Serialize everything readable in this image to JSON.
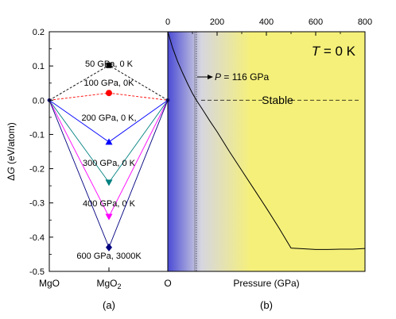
{
  "chart_data": [
    {
      "panel_label": "(a)",
      "type": "line",
      "ylabel_prefix": "Δ",
      "ylabel_var": "G",
      "ylabel_suffix": " (eV/atom)",
      "ylim": [
        -0.5,
        0.2
      ],
      "yticks": [
        0.2,
        0.1,
        0.0,
        -0.1,
        -0.2,
        -0.3,
        -0.4,
        -0.5
      ],
      "x_categories": [
        "MgO",
        "MgO2",
        "O"
      ],
      "x_labels": {
        "mgo": "MgO",
        "mgo2_base": "MgO",
        "mgo2_sub": "2",
        "o": "O"
      },
      "grid": false,
      "series": [
        {
          "name": "50 GPa, 0 K",
          "label": "50 GPa, 0 K",
          "color": "#000000",
          "marker": "square",
          "dash": true,
          "values": [
            0.0,
            0.102,
            0.0
          ]
        },
        {
          "name": "100 GPa, 0K",
          "label": "100 GPa, 0K",
          "color": "#ff0000",
          "marker": "circle",
          "dash": true,
          "values": [
            0.0,
            0.021,
            0.0
          ]
        },
        {
          "name": "200 GPa, 0 K,",
          "label": "200 GPa, 0 K,",
          "color": "#0000ff",
          "marker": "triangle-up",
          "dash": false,
          "values": [
            0.0,
            -0.122,
            0.0
          ]
        },
        {
          "name": "300 GPa, 0 K",
          "label": "300 GPa, 0 K",
          "color": "#008080",
          "marker": "triangle-down",
          "dash": false,
          "values": [
            0.0,
            -0.24,
            0.0
          ]
        },
        {
          "name": "400 GPa, 0 K",
          "label": "400 GPa, 0 K",
          "color": "#ff00ff",
          "marker": "triangle-down",
          "dash": false,
          "values": [
            0.0,
            -0.34,
            0.0
          ]
        },
        {
          "name": "600 GPa, 3000K",
          "label": "600 GPa, 3000K",
          "color": "#000080",
          "marker": "diamond",
          "dash": false,
          "values": [
            0.0,
            -0.43,
            0.0
          ]
        }
      ]
    },
    {
      "panel_label": "(b)",
      "type": "line",
      "xlabel": "Pressure (GPa)",
      "xlim": [
        0,
        800
      ],
      "xticks": [
        0,
        200,
        400,
        600,
        800
      ],
      "ylim": [
        -0.5,
        0.2
      ],
      "grid": false,
      "title_var": "T",
      "title_rest": " = 0 K",
      "annotation_var": "P",
      "annotation_rest": " = 116 GPa",
      "transition_pressure": 116,
      "stable_label": "Stable",
      "background_colors": {
        "left": "#4b4bd6",
        "mid": "#d6d6e0",
        "right": "#f5f07a"
      },
      "series": [
        {
          "color": "#000000",
          "x": [
            0,
            20,
            40,
            60,
            80,
            100,
            116,
            140,
            170,
            200,
            250,
            300,
            350,
            400,
            450,
            500,
            550,
            600,
            650,
            700,
            750,
            800
          ],
          "y": [
            0.2,
            0.152,
            0.113,
            0.08,
            0.049,
            0.02,
            0.0,
            -0.026,
            -0.06,
            -0.092,
            -0.15,
            -0.205,
            -0.26,
            -0.315,
            -0.372,
            -0.432,
            -0.434,
            -0.436,
            -0.436,
            -0.435,
            -0.435,
            -0.433
          ]
        }
      ]
    }
  ]
}
